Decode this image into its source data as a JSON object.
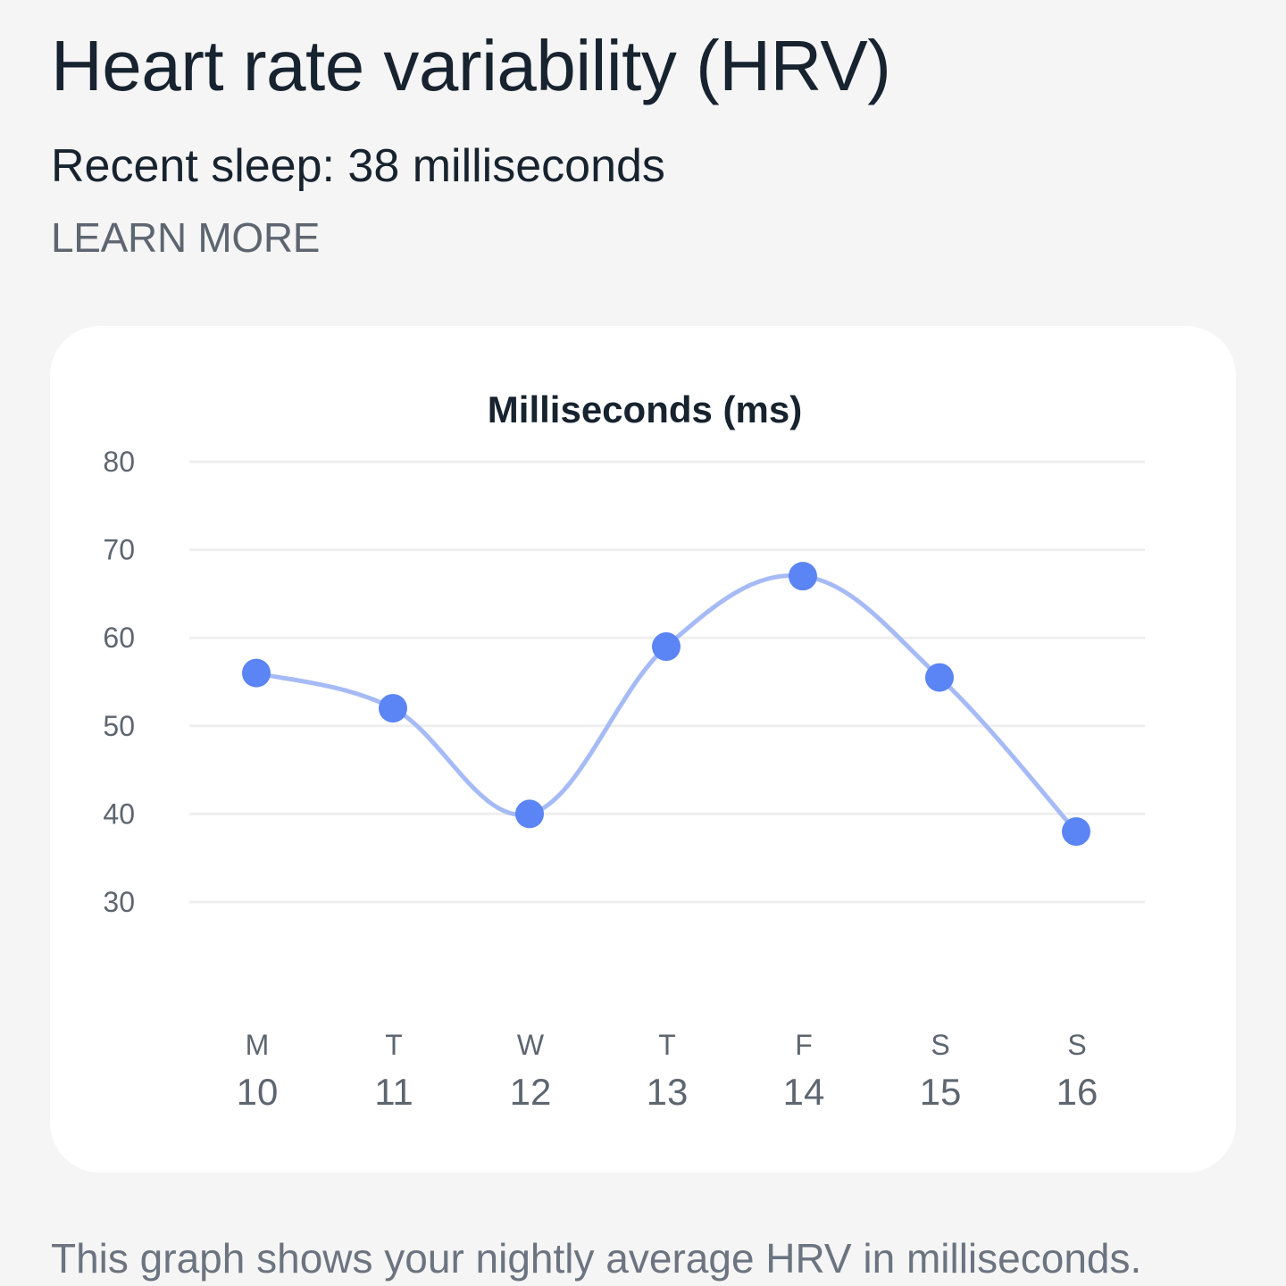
{
  "header": {
    "title": "Heart rate variability (HRV)",
    "recent_sleep": "Recent sleep: 38 milliseconds",
    "learn_more": "LEARN MORE"
  },
  "chart_data": {
    "type": "line",
    "title": "Milliseconds (ms)",
    "xlabel": "",
    "ylabel": "",
    "categories": [
      {
        "day": "M",
        "date": "10"
      },
      {
        "day": "T",
        "date": "11"
      },
      {
        "day": "W",
        "date": "12"
      },
      {
        "day": "T",
        "date": "13"
      },
      {
        "day": "F",
        "date": "14"
      },
      {
        "day": "S",
        "date": "15"
      },
      {
        "day": "S",
        "date": "16"
      }
    ],
    "values": [
      56,
      52,
      40,
      59,
      67,
      55.5,
      38
    ],
    "yticks": [
      "80",
      "70",
      "60",
      "50",
      "40",
      "30"
    ],
    "ylim": [
      30,
      80
    ],
    "grid": true,
    "colors": {
      "line": "#a6bbf5",
      "point": "#5b84f5",
      "grid": "#efefef"
    }
  },
  "footer": {
    "description": "This graph shows your nightly average HRV in milliseconds."
  }
}
